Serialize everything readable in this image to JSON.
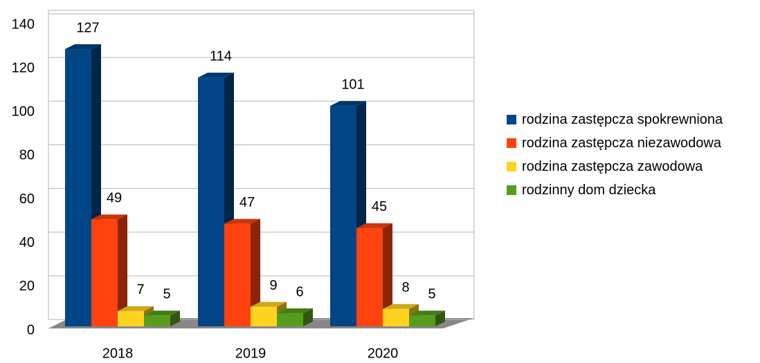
{
  "chart_data": {
    "type": "bar3d",
    "categories": [
      "2018",
      "2019",
      "2020"
    ],
    "series": [
      {
        "name": "rodzina zastępcza spokrewniona",
        "color": "#004586",
        "values": [
          127,
          114,
          101
        ]
      },
      {
        "name": "rodzina zastępcza niezawodowa",
        "color": "#ff420e",
        "values": [
          49,
          47,
          45
        ]
      },
      {
        "name": "rodzina zastępcza zawodowa",
        "color": "#ffd320",
        "values": [
          7,
          9,
          8
        ]
      },
      {
        "name": "rodzinny dom dziecka",
        "color": "#579d1c",
        "values": [
          5,
          6,
          5
        ]
      }
    ],
    "ylim": [
      0,
      140
    ],
    "yticks": [
      0,
      20,
      40,
      60,
      80,
      100,
      120,
      140
    ],
    "grid": true,
    "legend": "right"
  }
}
